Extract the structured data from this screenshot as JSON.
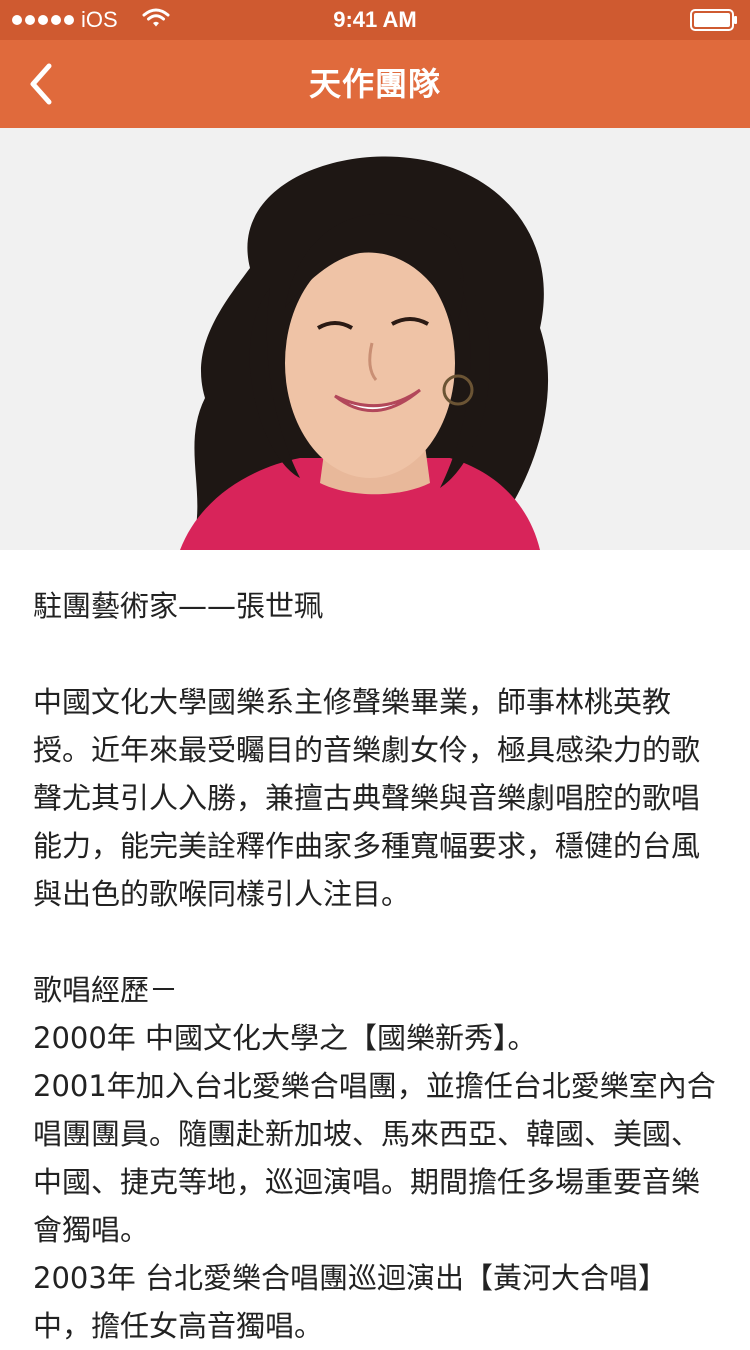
{
  "status": {
    "carrier": "iOS",
    "time": "9:41 AM"
  },
  "nav": {
    "title": "天作團隊",
    "back_icon": "chevron-left-icon"
  },
  "hero": {
    "image": "portrait-photo"
  },
  "profile": {
    "heading": "駐團藝術家——張世珮",
    "bio": "中國文化大學國樂系主修聲樂畢業，師事林桃英教授。近年來最受矚目的音樂劇女伶，極具感染力的歌聲尤其引人入勝，兼擅古典聲樂與音樂劇唱腔的歌唱能力，能完美詮釋作曲家多種寬幅要求，穩健的台風與出色的歌喉同樣引人注目。",
    "history_title": "歌唱經歷－",
    "history": [
      "2000年 中國文化大學之【國樂新秀】。",
      "2001年加入台北愛樂合唱團，並擔任台北愛樂室內合唱團團員。隨團赴新加坡、馬來西亞、韓國、美國、中國、捷克等地，巡迴演唱。期間擔任多場重要音樂會獨唱。",
      "2003年 台北愛樂合唱團巡迴演出【黃河大合唱】中，擔任女高音獨唱。"
    ]
  },
  "colors": {
    "status_bar": "#cf5a30",
    "nav_bar": "#e06a3c",
    "text": "#222222"
  }
}
